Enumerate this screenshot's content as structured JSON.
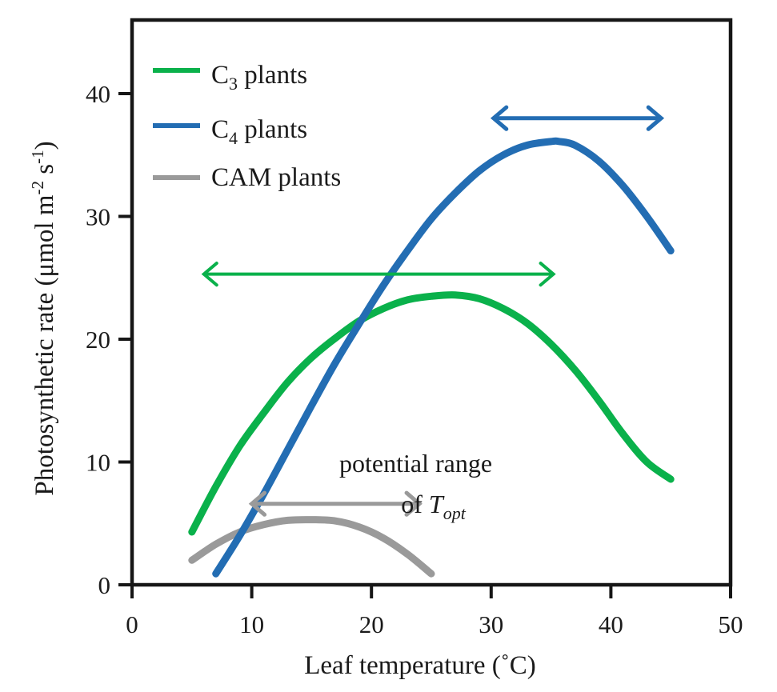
{
  "chart_data": {
    "type": "line",
    "title": "",
    "xlabel": "Leaf temperature (˚C)",
    "ylabel": {
      "main": "Photosynthetic rate (μmol m",
      "sup1": "-2",
      "mid": " s",
      "sup2": "-1",
      "end": ")"
    },
    "xlim": [
      0,
      50
    ],
    "ylim": [
      0,
      45
    ],
    "xticks": [
      0,
      10,
      20,
      30,
      40,
      50
    ],
    "yticks": [
      0,
      10,
      20,
      30,
      40
    ],
    "xtick_labels": [
      "0",
      "10",
      "20",
      "30",
      "40",
      "50"
    ],
    "ytick_labels": [
      "0",
      "10",
      "20",
      "30",
      "40"
    ],
    "grid": false,
    "legend_position": "top-left",
    "series": [
      {
        "name": "C3 plants",
        "label_base": "C",
        "label_sub": "3",
        "label_rest": " plants",
        "color": "#0ab14b",
        "x": [
          5,
          7,
          9,
          11,
          13,
          15,
          17,
          19,
          21,
          23,
          25,
          27,
          29,
          31,
          33,
          35,
          37,
          39,
          41,
          43,
          45
        ],
        "y": [
          4.3,
          8.0,
          11.3,
          14.0,
          16.5,
          18.5,
          20.1,
          21.5,
          22.5,
          23.2,
          23.5,
          23.6,
          23.3,
          22.5,
          21.3,
          19.6,
          17.5,
          15.0,
          12.3,
          10.0,
          8.6
        ]
      },
      {
        "name": "C4 plants",
        "label_base": "C",
        "label_sub": "4",
        "label_rest": " plants",
        "color": "#236db3",
        "x": [
          7,
          9,
          11,
          13,
          15,
          17,
          19,
          21,
          23,
          25,
          27,
          29,
          31,
          33,
          35,
          35.7,
          37,
          39,
          41,
          43,
          45
        ],
        "y": [
          0.9,
          4.0,
          7.4,
          11.0,
          14.6,
          18.1,
          21.3,
          24.4,
          27.2,
          29.8,
          31.9,
          33.7,
          35.0,
          35.8,
          36.1,
          36.1,
          35.8,
          34.5,
          32.5,
          30.0,
          27.2
        ]
      },
      {
        "name": "CAM plants",
        "label_base": "CAM plants",
        "label_sub": "",
        "label_rest": "",
        "color": "#9a9a9a",
        "x": [
          5,
          7,
          9,
          11,
          13,
          15,
          17,
          19,
          21,
          23,
          25
        ],
        "y": [
          2.0,
          3.3,
          4.3,
          4.9,
          5.25,
          5.3,
          5.2,
          4.7,
          3.8,
          2.5,
          0.9
        ]
      }
    ],
    "range_arrows": [
      {
        "name": "C3 Topt range",
        "color": "#0ab14b",
        "x_start": 6,
        "x_end": 35.2,
        "y": 25.3
      },
      {
        "name": "C4 Topt range",
        "color": "#236db3",
        "x_start": 30.2,
        "x_end": 44.2,
        "y": 38.0
      },
      {
        "name": "CAM Topt range",
        "color": "#9a9a9a",
        "x_start": 10,
        "x_end": 24,
        "y": 6.6
      }
    ],
    "annotation": {
      "line1": "potential range",
      "line2_prefix": "of ",
      "line2_var": "T",
      "line2_sub": "opt",
      "x": 23.7,
      "y1": 9.5,
      "y2": 6.2
    }
  }
}
